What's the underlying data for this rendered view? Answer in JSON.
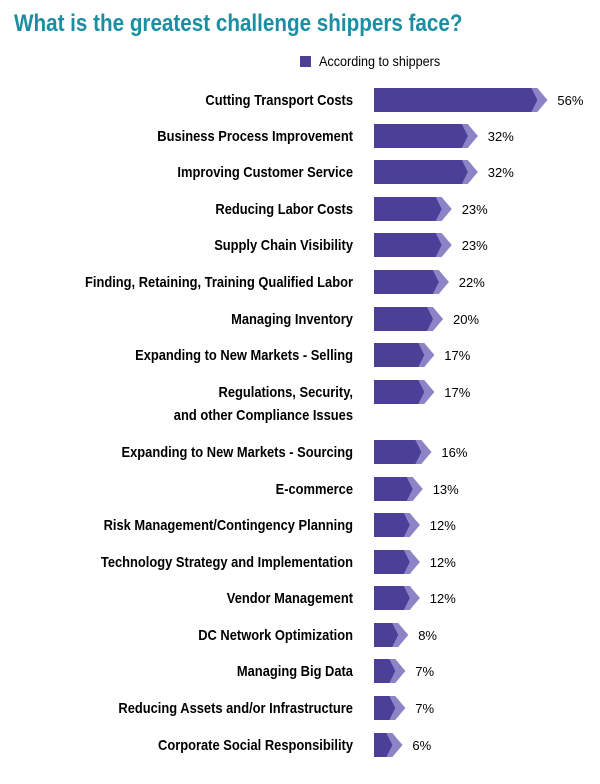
{
  "chart_data": {
    "type": "bar",
    "orientation": "horizontal",
    "title": "What is the greatest challenge shippers face?",
    "legend": [
      "According to shippers"
    ],
    "legend_placement": "top-right",
    "color": "#4b3f98",
    "categories": [
      [
        "Cutting Transport Costs"
      ],
      [
        "Business Process Improvement"
      ],
      [
        "Improving Customer Service"
      ],
      [
        "Reducing Labor Costs"
      ],
      [
        "Supply Chain Visibility"
      ],
      [
        "Finding, Retaining, Training Qualified Labor"
      ],
      [
        "Managing Inventory"
      ],
      [
        "Expanding to New Markets - Selling"
      ],
      [
        "Regulations, Security,",
        "and other Compliance Issues"
      ],
      [
        "Expanding to New Markets - Sourcing"
      ],
      [
        "E-commerce"
      ],
      [
        "Risk Management/Contingency Planning"
      ],
      [
        "Technology Strategy and Implementation"
      ],
      [
        "Vendor Management"
      ],
      [
        "DC Network Optimization"
      ],
      [
        "Managing Big Data"
      ],
      [
        "Reducing Assets and/or Infrastructure"
      ],
      [
        "Corporate Social Responsibility"
      ]
    ],
    "values": [
      56,
      32,
      32,
      23,
      23,
      22,
      20,
      17,
      17,
      16,
      13,
      12,
      12,
      12,
      8,
      7,
      7,
      6
    ],
    "value_labels": [
      "56%",
      "32%",
      "32%",
      "23%",
      "23%",
      "22%",
      "20%",
      "17%",
      "17%",
      "16%",
      "13%",
      "12%",
      "12%",
      "12%",
      "8%",
      "7%",
      "7%",
      "6%"
    ]
  }
}
